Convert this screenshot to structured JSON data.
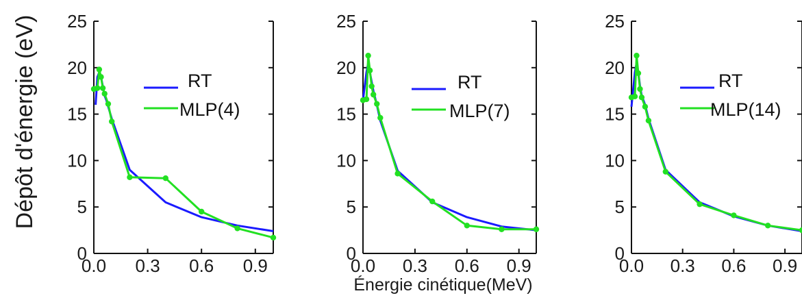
{
  "ylabel": "Dépôt d'énergie (eV)",
  "xlabel": "Énergie cinétique(MeV)",
  "chart_data": [
    {
      "type": "line",
      "xlim": [
        0.0,
        1.0
      ],
      "ylim": [
        0,
        25
      ],
      "xticks": [
        "0.0",
        "0.3",
        "0.6",
        "0.9"
      ],
      "yticks": [
        "0",
        "5",
        "10",
        "15",
        "20",
        "25"
      ],
      "legend": "center-right",
      "series": [
        {
          "name": "RT",
          "color": "#1a1aff",
          "markers": false,
          "x": [
            0.01,
            0.02,
            0.03,
            0.04,
            0.05,
            0.06,
            0.07,
            0.1,
            0.2,
            0.4,
            0.6,
            0.8,
            1.0
          ],
          "y": [
            16.0,
            19.0,
            19.5,
            19.0,
            18.0,
            17.0,
            16.5,
            14.5,
            9.0,
            5.5,
            3.9,
            3.0,
            2.4
          ]
        },
        {
          "name": "MLP(4)",
          "color": "#22e022",
          "markers": true,
          "x": [
            0.0,
            0.02,
            0.03,
            0.04,
            0.05,
            0.06,
            0.08,
            0.1,
            0.2,
            0.4,
            0.6,
            0.8,
            1.0
          ],
          "y": [
            17.7,
            17.8,
            19.8,
            19.0,
            17.8,
            17.2,
            16.1,
            14.2,
            8.2,
            8.1,
            4.5,
            2.7,
            1.7
          ]
        }
      ]
    },
    {
      "type": "line",
      "xlim": [
        0.0,
        1.0
      ],
      "ylim": [
        0,
        25
      ],
      "xticks": [
        "0.0",
        "0.3",
        "0.6",
        "0.9"
      ],
      "yticks": [
        "0",
        "5",
        "10",
        "15",
        "20",
        "25"
      ],
      "legend": "center-right",
      "series": [
        {
          "name": "RT",
          "color": "#1a1aff",
          "markers": false,
          "x": [
            0.0,
            0.02,
            0.03,
            0.04,
            0.05,
            0.06,
            0.08,
            0.1,
            0.2,
            0.4,
            0.6,
            0.8,
            1.0
          ],
          "y": [
            16.5,
            19.5,
            20.5,
            19.5,
            18.5,
            17.5,
            16.0,
            14.3,
            8.9,
            5.5,
            3.9,
            2.9,
            2.5
          ]
        },
        {
          "name": "MLP(7)",
          "color": "#22e022",
          "markers": true,
          "x": [
            0.0,
            0.02,
            0.03,
            0.04,
            0.05,
            0.06,
            0.08,
            0.1,
            0.2,
            0.4,
            0.6,
            0.8,
            1.0
          ],
          "y": [
            16.5,
            16.6,
            21.3,
            19.7,
            18.0,
            17.1,
            16.1,
            14.6,
            8.6,
            5.6,
            3.0,
            2.6,
            2.6
          ]
        }
      ]
    },
    {
      "type": "line",
      "xlim": [
        0.0,
        1.0
      ],
      "ylim": [
        0,
        25
      ],
      "xticks": [
        "0.0",
        "0.3",
        "0.6",
        "0.9"
      ],
      "yticks": [
        "0",
        "5",
        "10",
        "15",
        "20",
        "25"
      ],
      "legend": "center-right",
      "series": [
        {
          "name": "RT",
          "color": "#1a1aff",
          "markers": false,
          "x": [
            0.0,
            0.02,
            0.03,
            0.04,
            0.05,
            0.06,
            0.08,
            0.1,
            0.2,
            0.4,
            0.6,
            0.8,
            1.0
          ],
          "y": [
            15.8,
            19.5,
            20.5,
            19.5,
            18.0,
            17.0,
            16.0,
            14.5,
            9.0,
            5.5,
            4.0,
            3.0,
            2.4
          ]
        },
        {
          "name": "MLP(14)",
          "color": "#22e022",
          "markers": true,
          "x": [
            0.0,
            0.02,
            0.03,
            0.04,
            0.05,
            0.06,
            0.08,
            0.1,
            0.2,
            0.4,
            0.6,
            0.8,
            1.0
          ],
          "y": [
            16.8,
            16.9,
            21.3,
            19.4,
            17.7,
            16.8,
            15.8,
            14.3,
            8.8,
            5.3,
            4.1,
            3.0,
            2.5
          ]
        }
      ]
    }
  ]
}
